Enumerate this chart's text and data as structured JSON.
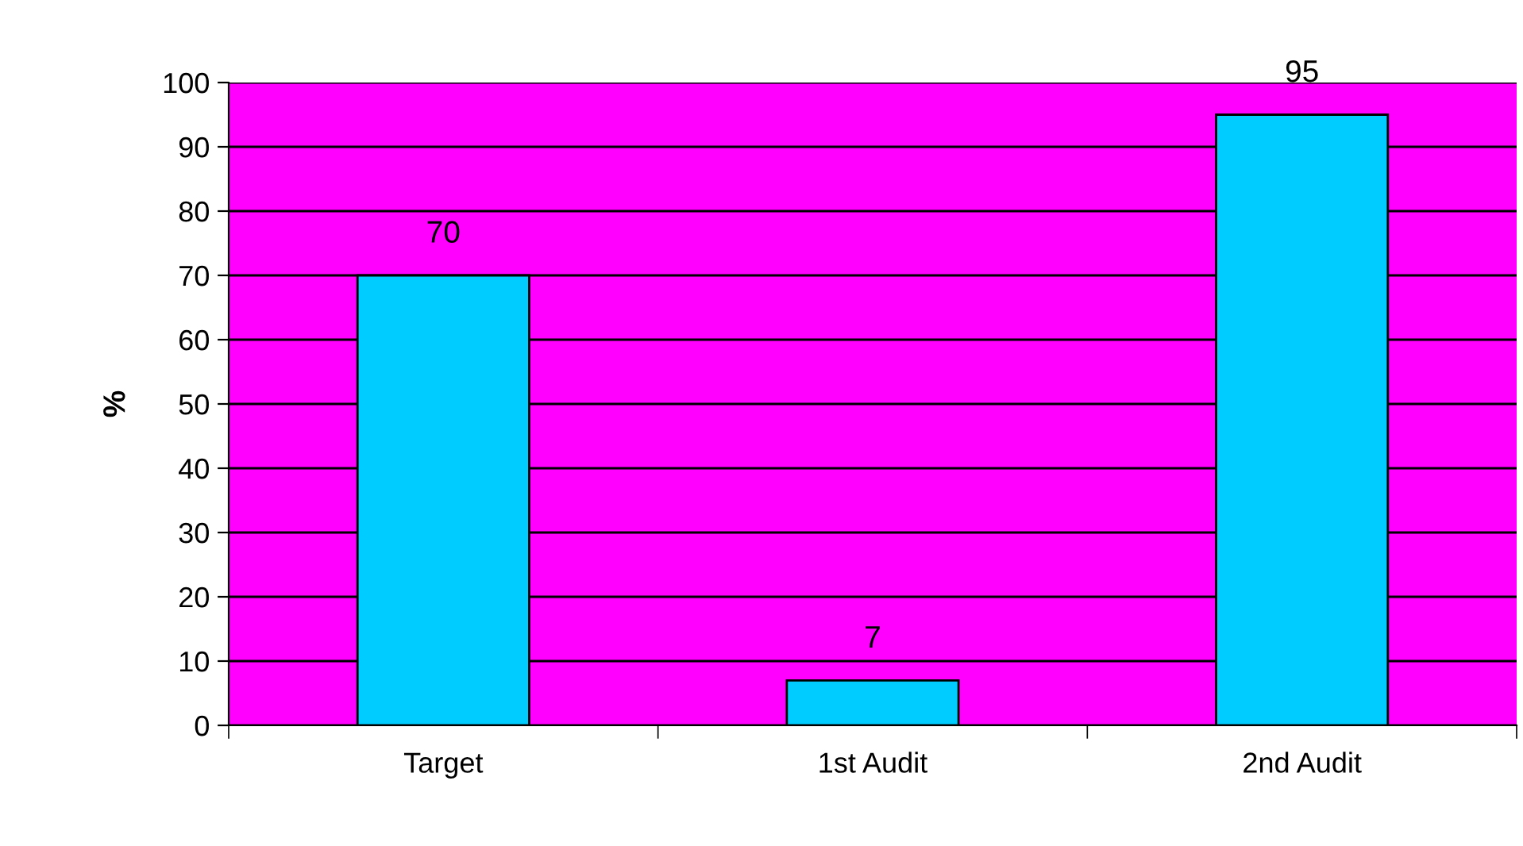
{
  "chart_data": {
    "type": "bar",
    "ylabel": "%",
    "categories": [
      "Target",
      "1st Audit",
      "2nd Audit"
    ],
    "values": [
      70,
      7,
      95
    ],
    "color": "#00ccff",
    "ylim": [
      0,
      100
    ],
    "yticks": [
      0,
      10,
      20,
      30,
      40,
      50,
      60,
      70,
      80,
      90,
      100
    ],
    "grid": "y",
    "data_labels": true
  }
}
